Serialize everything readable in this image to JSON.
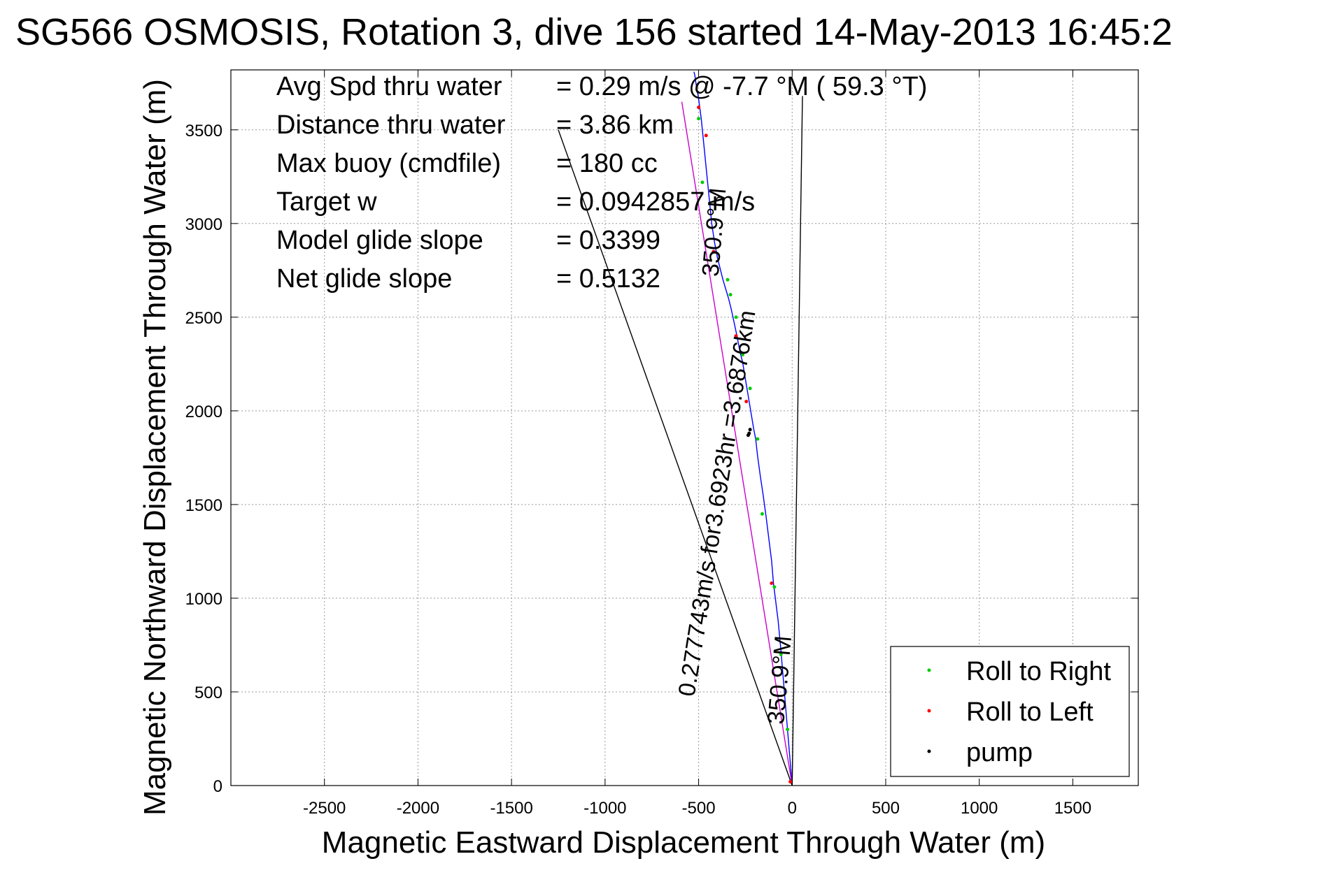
{
  "chart_data": {
    "type": "line",
    "title": "SG566 OSMOSIS, Rotation 3, dive 156 started 14-May-2013 16:45:2",
    "xlabel": "Magnetic Eastward Displacement Through Water (m)",
    "ylabel": "Magnetic Northward Displacement Through Water (m)",
    "xlim": [
      -3000,
      1850
    ],
    "ylim": [
      0,
      3820
    ],
    "x_ticks": [
      -2500,
      -2000,
      -1500,
      -1000,
      -500,
      0,
      500,
      1000,
      1500
    ],
    "y_ticks": [
      0,
      500,
      1000,
      1500,
      2000,
      2500,
      3000,
      3500
    ],
    "grid": true,
    "stats": [
      {
        "label": "Avg Spd thru water",
        "value": "=  0.29 m/s @  -7.7 °M ( 59.3 °T)"
      },
      {
        "label": "Distance thru water",
        "value": "=  3.86 km"
      },
      {
        "label": "Max buoy (cmdfile)",
        "value": "= 180 cc"
      },
      {
        "label": "Target w",
        "value": "= 0.0942857 m/s"
      },
      {
        "label": "Model glide slope",
        "value": "= 0.3399"
      },
      {
        "label": "Net glide slope",
        "value": "= 0.5132"
      }
    ],
    "annotations": [
      {
        "text": "350.9°M",
        "x": -375,
        "y": 2950,
        "angle": -85
      },
      {
        "text": "0.277743m/s for3.6923hr =3.6876km",
        "x": -360,
        "y": 1500,
        "angle": -81
      },
      {
        "text": "350.9°M",
        "x": -25,
        "y": 560,
        "angle": -85
      }
    ],
    "legend": {
      "placement": "bottom-right",
      "entries": [
        {
          "label": "Roll to Right",
          "color": "#00cc00"
        },
        {
          "label": "Roll to Left",
          "color": "#ff0000"
        },
        {
          "label": "pump",
          "color": "#000000"
        }
      ]
    },
    "series": [
      {
        "name": "track",
        "color": "#0000ff",
        "x": [
          0,
          -15,
          -30,
          -45,
          -60,
          -75,
          -90,
          -100,
          -110,
          -125,
          -140,
          -155,
          -170,
          -185,
          -195,
          -205,
          -215,
          -225,
          -235,
          -245,
          -255,
          -265,
          -280,
          -295,
          -310,
          -325,
          -340,
          -355,
          -370,
          -385,
          -400,
          -415,
          -430,
          -440,
          -450,
          -460,
          -470,
          -478,
          -486,
          -494,
          -502,
          -510,
          -516,
          -520,
          -525
        ],
        "y": [
          0,
          180,
          360,
          540,
          720,
          880,
          1000,
          1080,
          1200,
          1320,
          1440,
          1550,
          1650,
          1760,
          1850,
          1900,
          1960,
          2020,
          2080,
          2140,
          2200,
          2260,
          2320,
          2400,
          2470,
          2540,
          2600,
          2650,
          2700,
          2760,
          2820,
          2900,
          3000,
          3100,
          3200,
          3300,
          3400,
          3480,
          3560,
          3620,
          3680,
          3720,
          3760,
          3790,
          3810
        ]
      },
      {
        "name": "rhumb",
        "color": "#cc00cc",
        "x": [
          0,
          -590
        ],
        "y": [
          0,
          3650
        ]
      },
      {
        "name": "heading",
        "color": "#000000",
        "x": [
          0,
          55
        ],
        "y": [
          0,
          3680
        ]
      },
      {
        "name": "glide",
        "color": "#000000",
        "x": [
          0,
          -1250
        ],
        "y": [
          0,
          3500
        ]
      }
    ],
    "markers": {
      "roll_right": {
        "x": [
          -25,
          -60,
          -95,
          -160,
          -185,
          -225,
          -265,
          -300,
          -330,
          -345,
          -480,
          -500
        ],
        "y": [
          300,
          700,
          1060,
          1450,
          1850,
          2120,
          2300,
          2500,
          2620,
          2700,
          3220,
          3560
        ]
      },
      "roll_left": {
        "x": [
          -10,
          -110,
          -245,
          -300,
          -420,
          -460,
          -500
        ],
        "y": [
          20,
          1080,
          2050,
          2400,
          2850,
          3470,
          3620
        ]
      },
      "pump": {
        "x": [
          -235,
          -230,
          -225
        ],
        "y": [
          1870,
          1880,
          1900
        ]
      }
    }
  }
}
